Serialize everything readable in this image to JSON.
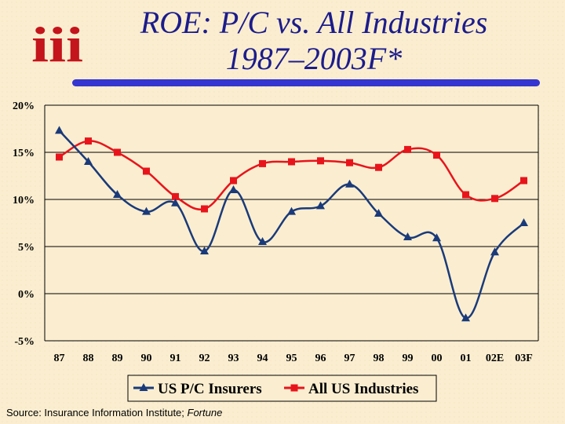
{
  "header": {
    "title_line1": "ROE: P/C vs. All Industries",
    "title_line2": "1987–2003F*",
    "logo_text": "iii"
  },
  "chart_data": {
    "type": "line",
    "categories": [
      "87",
      "88",
      "89",
      "90",
      "91",
      "92",
      "93",
      "94",
      "95",
      "96",
      "97",
      "98",
      "99",
      "00",
      "01",
      "02E",
      "03F"
    ],
    "ylim": [
      -5,
      20
    ],
    "yticks": [
      -5,
      0,
      5,
      10,
      15,
      20
    ],
    "ytick_labels": [
      "-5%",
      "0%",
      "5%",
      "10%",
      "15%",
      "20%"
    ],
    "grid": true,
    "legend_position": "bottom",
    "series": [
      {
        "name": "US P/C Insurers",
        "color": "#1a3a7a",
        "marker": "triangle",
        "values": [
          17.3,
          14.0,
          10.5,
          8.7,
          9.6,
          4.5,
          11.0,
          5.5,
          8.7,
          9.3,
          11.6,
          8.5,
          6.0,
          5.9,
          -2.6,
          4.4,
          7.5
        ]
      },
      {
        "name": "All US Industries",
        "color": "#e8141c",
        "marker": "square",
        "values": [
          14.5,
          16.2,
          15.0,
          13.0,
          10.3,
          9.0,
          12.0,
          13.8,
          14.0,
          14.1,
          13.9,
          13.4,
          15.3,
          14.7,
          10.5,
          10.1,
          12.0
        ]
      }
    ]
  },
  "footer": {
    "source_label": "Source:  Insurance Information Institute; ",
    "source_italic": "Fortune"
  }
}
